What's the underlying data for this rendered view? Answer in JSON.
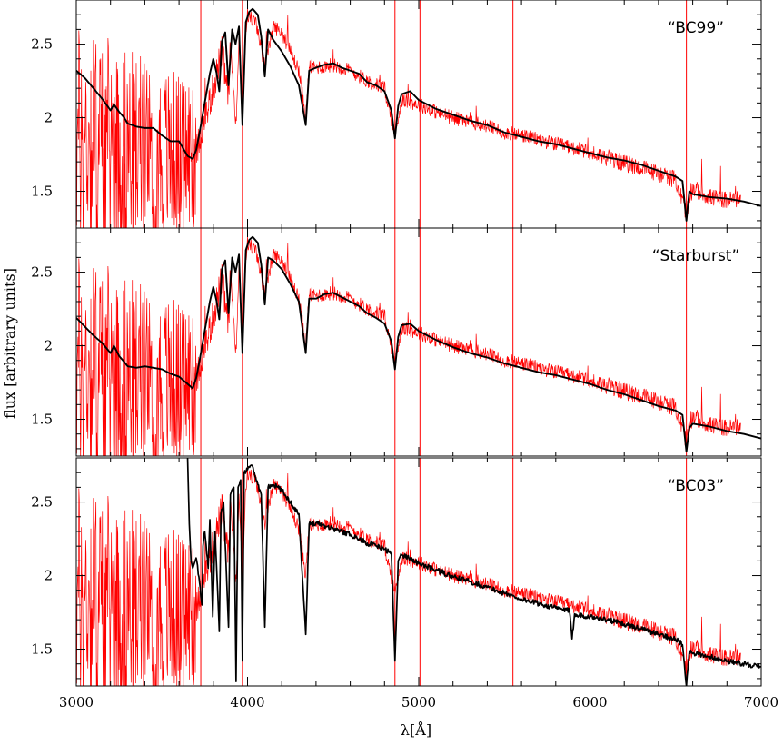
{
  "chart_data": {
    "type": "line",
    "xlabel": "λ[Å]",
    "ylabel": "flux [arbitrary units]",
    "xlim": [
      3000,
      7000
    ],
    "ylim": [
      1.25,
      2.8
    ],
    "x_ticks": [
      3000,
      4000,
      5000,
      6000,
      7000
    ],
    "y_ticks": [
      1.5,
      2,
      2.5
    ],
    "y_tick_labels": [
      "1.5",
      "2",
      "2.5"
    ],
    "colors": {
      "observed": "#ff0000",
      "model": "#000000"
    },
    "panels": [
      {
        "label": "“BC99”",
        "model": {
          "x": [
            3000,
            3050,
            3100,
            3150,
            3200,
            3220,
            3250,
            3280,
            3300,
            3350,
            3400,
            3450,
            3500,
            3550,
            3600,
            3650,
            3680,
            3700,
            3720,
            3750,
            3780,
            3800,
            3820,
            3835,
            3850,
            3870,
            3889,
            3910,
            3930,
            3950,
            3970,
            3990,
            4010,
            4030,
            4060,
            4080,
            4101,
            4120,
            4150,
            4200,
            4250,
            4300,
            4340,
            4360,
            4400,
            4450,
            4500,
            4550,
            4600,
            4650,
            4700,
            4750,
            4800,
            4840,
            4861,
            4880,
            4900,
            4950,
            5000,
            5100,
            5200,
            5300,
            5400,
            5500,
            5600,
            5700,
            5800,
            5900,
            6000,
            6100,
            6200,
            6300,
            6400,
            6500,
            6540,
            6563,
            6580,
            6600,
            6700,
            6800,
            6900,
            7000
          ],
          "y": [
            2.32,
            2.27,
            2.2,
            2.13,
            2.05,
            2.09,
            2.04,
            2.0,
            1.96,
            1.94,
            1.93,
            1.93,
            1.88,
            1.84,
            1.84,
            1.74,
            1.72,
            1.78,
            1.9,
            2.1,
            2.3,
            2.4,
            2.3,
            2.18,
            2.52,
            2.58,
            2.22,
            2.6,
            2.5,
            2.62,
            1.95,
            2.65,
            2.72,
            2.74,
            2.7,
            2.55,
            2.28,
            2.6,
            2.53,
            2.45,
            2.35,
            2.22,
            1.95,
            2.32,
            2.34,
            2.36,
            2.37,
            2.34,
            2.32,
            2.3,
            2.24,
            2.22,
            2.18,
            2.05,
            1.86,
            2.08,
            2.16,
            2.18,
            2.12,
            2.06,
            2.02,
            1.98,
            1.95,
            1.9,
            1.87,
            1.84,
            1.82,
            1.79,
            1.76,
            1.73,
            1.71,
            1.68,
            1.64,
            1.6,
            1.57,
            1.3,
            1.5,
            1.48,
            1.46,
            1.45,
            1.43,
            1.4
          ]
        },
        "observed": {
          "x": [
            3000,
            3100,
            3200,
            3300,
            3400,
            3500,
            3600,
            3700,
            3750,
            3800,
            3850,
            3889,
            3900,
            3933,
            3950,
            3970,
            3990,
            4000,
            4050,
            4101,
            4150,
            4200,
            4250,
            4300,
            4340,
            4360,
            4400,
            4500,
            4600,
            4700,
            4800,
            4861,
            4900,
            5000,
            5100,
            5200,
            5300,
            5400,
            5500,
            5600,
            5700,
            5800,
            5900,
            6000,
            6100,
            6200,
            6300,
            6400,
            6500,
            6563,
            6600,
            6700,
            6800,
            6880
          ],
          "y": [
            1.85,
            1.85,
            1.8,
            1.78,
            1.75,
            1.75,
            1.73,
            1.78,
            1.98,
            2.2,
            2.45,
            2.12,
            2.5,
            1.95,
            2.55,
            2.0,
            2.6,
            2.7,
            2.64,
            2.35,
            2.62,
            2.58,
            2.45,
            2.32,
            2.0,
            2.35,
            2.34,
            2.36,
            2.32,
            2.25,
            2.2,
            1.88,
            2.12,
            2.09,
            2.04,
            2.0,
            1.97,
            1.94,
            1.9,
            1.88,
            1.85,
            1.82,
            1.8,
            1.76,
            1.73,
            1.69,
            1.66,
            1.62,
            1.58,
            1.35,
            1.52,
            1.46,
            1.44,
            1.45
          ]
        },
        "observed_style": "noisy"
      },
      {
        "label": "“Starburst”",
        "model": {
          "x": [
            3000,
            3050,
            3100,
            3150,
            3200,
            3220,
            3250,
            3280,
            3300,
            3350,
            3400,
            3450,
            3500,
            3550,
            3600,
            3650,
            3680,
            3700,
            3720,
            3750,
            3780,
            3800,
            3820,
            3835,
            3850,
            3870,
            3889,
            3910,
            3930,
            3950,
            3970,
            3990,
            4010,
            4030,
            4060,
            4080,
            4101,
            4120,
            4150,
            4200,
            4250,
            4300,
            4340,
            4360,
            4400,
            4450,
            4500,
            4550,
            4600,
            4650,
            4700,
            4750,
            4800,
            4840,
            4861,
            4880,
            4900,
            4950,
            5000,
            5100,
            5200,
            5300,
            5400,
            5500,
            5600,
            5700,
            5800,
            5900,
            6000,
            6100,
            6200,
            6300,
            6400,
            6500,
            6540,
            6563,
            6580,
            6600,
            6700,
            6800,
            6900,
            7000
          ],
          "y": [
            2.19,
            2.13,
            2.07,
            2.02,
            1.95,
            2.0,
            1.93,
            1.89,
            1.86,
            1.85,
            1.86,
            1.85,
            1.84,
            1.81,
            1.79,
            1.74,
            1.71,
            1.78,
            1.9,
            2.1,
            2.3,
            2.4,
            2.3,
            2.18,
            2.52,
            2.58,
            2.22,
            2.6,
            2.5,
            2.62,
            1.95,
            2.65,
            2.72,
            2.74,
            2.7,
            2.55,
            2.28,
            2.6,
            2.58,
            2.52,
            2.42,
            2.3,
            1.95,
            2.32,
            2.32,
            2.35,
            2.36,
            2.33,
            2.3,
            2.27,
            2.22,
            2.19,
            2.15,
            2.03,
            1.84,
            2.06,
            2.14,
            2.15,
            2.1,
            2.04,
            1.99,
            1.95,
            1.92,
            1.88,
            1.85,
            1.82,
            1.8,
            1.77,
            1.74,
            1.7,
            1.67,
            1.63,
            1.59,
            1.56,
            1.53,
            1.28,
            1.44,
            1.47,
            1.45,
            1.42,
            1.4,
            1.37
          ]
        },
        "observed": {
          "x": [
            3000,
            3100,
            3200,
            3300,
            3400,
            3500,
            3600,
            3700,
            3750,
            3800,
            3850,
            3889,
            3900,
            3933,
            3950,
            3970,
            3990,
            4000,
            4050,
            4101,
            4150,
            4200,
            4250,
            4300,
            4340,
            4360,
            4400,
            4500,
            4600,
            4700,
            4800,
            4861,
            4900,
            5000,
            5100,
            5200,
            5300,
            5400,
            5500,
            5600,
            5700,
            5800,
            5900,
            6000,
            6100,
            6200,
            6300,
            6400,
            6500,
            6563,
            6600,
            6700,
            6800,
            6880
          ],
          "y": [
            1.85,
            1.85,
            1.8,
            1.78,
            1.75,
            1.75,
            1.73,
            1.78,
            1.98,
            2.2,
            2.45,
            2.12,
            2.5,
            1.95,
            2.55,
            2.0,
            2.6,
            2.7,
            2.64,
            2.35,
            2.62,
            2.58,
            2.45,
            2.32,
            2.0,
            2.35,
            2.34,
            2.36,
            2.32,
            2.25,
            2.2,
            1.88,
            2.12,
            2.09,
            2.04,
            2.0,
            1.97,
            1.94,
            1.9,
            1.88,
            1.85,
            1.82,
            1.8,
            1.76,
            1.73,
            1.69,
            1.66,
            1.62,
            1.58,
            1.35,
            1.52,
            1.46,
            1.44,
            1.45
          ]
        },
        "observed_style": "noisy"
      },
      {
        "label": "“BC03”",
        "model": {
          "x": [
            3650,
            3660,
            3670,
            3680,
            3700,
            3720,
            3734,
            3740,
            3750,
            3770,
            3780,
            3797,
            3810,
            3835,
            3845,
            3860,
            3889,
            3900,
            3920,
            3933,
            3945,
            3960,
            3970,
            3980,
            4000,
            4020,
            4040,
            4060,
            4080,
            4101,
            4120,
            4150,
            4200,
            4250,
            4300,
            4340,
            4360,
            4400,
            4500,
            4600,
            4700,
            4800,
            4840,
            4861,
            4880,
            4900,
            4950,
            5000,
            5100,
            5200,
            5300,
            5400,
            5500,
            5600,
            5700,
            5800,
            5880,
            5895,
            5910,
            6000,
            6100,
            6200,
            6300,
            6400,
            6500,
            6540,
            6563,
            6580,
            6600,
            6700,
            6800,
            6900,
            7000
          ],
          "y": [
            2.8,
            2.35,
            2.1,
            2.05,
            2.12,
            1.95,
            1.8,
            2.2,
            2.3,
            2.05,
            2.38,
            1.72,
            2.3,
            1.62,
            2.42,
            2.5,
            1.65,
            2.55,
            2.6,
            1.28,
            2.6,
            2.65,
            1.42,
            2.7,
            2.72,
            2.75,
            2.7,
            2.62,
            2.55,
            1.65,
            2.6,
            2.62,
            2.58,
            2.5,
            2.42,
            1.6,
            2.35,
            2.36,
            2.32,
            2.28,
            2.22,
            2.18,
            2.15,
            1.42,
            2.1,
            2.14,
            2.12,
            2.08,
            2.04,
            1.99,
            1.96,
            1.92,
            1.88,
            1.84,
            1.81,
            1.78,
            1.76,
            1.57,
            1.74,
            1.72,
            1.7,
            1.67,
            1.64,
            1.6,
            1.57,
            1.53,
            1.25,
            1.48,
            1.47,
            1.45,
            1.42,
            1.4,
            1.38
          ]
        },
        "observed": {
          "x": [
            3000,
            3100,
            3200,
            3300,
            3400,
            3500,
            3600,
            3700,
            3750,
            3800,
            3850,
            3889,
            3900,
            3933,
            3950,
            3970,
            3990,
            4000,
            4050,
            4101,
            4150,
            4200,
            4250,
            4300,
            4340,
            4360,
            4400,
            4500,
            4600,
            4700,
            4800,
            4861,
            4900,
            5000,
            5100,
            5200,
            5300,
            5400,
            5500,
            5600,
            5700,
            5800,
            5900,
            6000,
            6100,
            6200,
            6300,
            6400,
            6500,
            6563,
            6600,
            6700,
            6800,
            6880
          ],
          "y": [
            1.85,
            1.85,
            1.8,
            1.78,
            1.75,
            1.75,
            1.73,
            1.78,
            1.98,
            2.2,
            2.45,
            2.12,
            2.5,
            1.95,
            2.55,
            2.0,
            2.6,
            2.7,
            2.64,
            2.35,
            2.62,
            2.58,
            2.45,
            2.32,
            2.0,
            2.35,
            2.34,
            2.36,
            2.32,
            2.25,
            2.2,
            1.88,
            2.12,
            2.09,
            2.04,
            2.0,
            1.97,
            1.94,
            1.9,
            1.88,
            1.85,
            1.82,
            1.8,
            1.76,
            1.73,
            1.69,
            1.66,
            1.62,
            1.58,
            1.35,
            1.52,
            1.46,
            1.44,
            1.45
          ]
        },
        "observed_style": "noisy"
      }
    ],
    "emission_lines": [
      3727,
      3970,
      4861,
      5007,
      5550,
      6563
    ]
  }
}
